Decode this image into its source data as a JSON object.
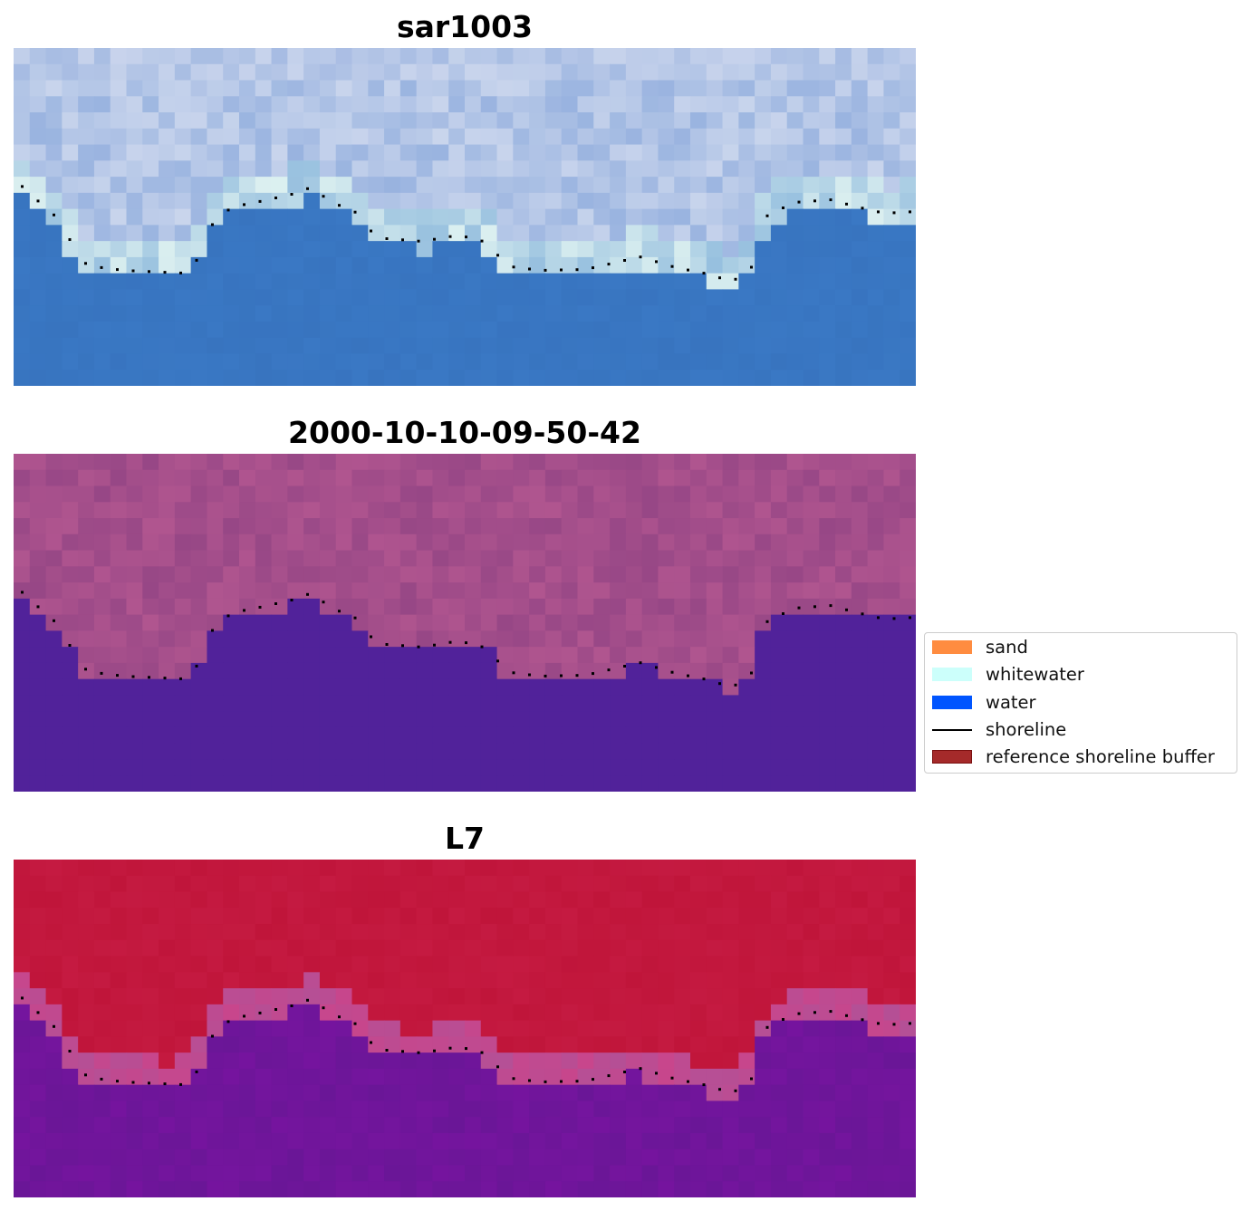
{
  "panels": [
    {
      "title": "sar1003",
      "style": "rgb"
    },
    {
      "title": "2000-10-10-09-50-42",
      "style": "classified"
    },
    {
      "title": "L7",
      "style": "index"
    }
  ],
  "legend": {
    "items": [
      {
        "label": "sand",
        "color": "#ff8c40",
        "kind": "patch"
      },
      {
        "label": "whitewater",
        "color": "#ccfffb",
        "kind": "patch"
      },
      {
        "label": "water",
        "color": "#0055ff",
        "kind": "patch"
      },
      {
        "label": "shoreline",
        "color": "#000000",
        "kind": "line"
      },
      {
        "label": "reference shoreline buffer",
        "color": "#a52a2a",
        "kind": "patch"
      }
    ]
  },
  "colors": {
    "rgb_sky": "#dde3f2",
    "rgb_water": "#3a78c4",
    "classified_land": "#b0558f",
    "classified_water": "#51229a",
    "index_land": "#c0153a",
    "index_water": "#6a1697",
    "shoreline": "#000000"
  }
}
